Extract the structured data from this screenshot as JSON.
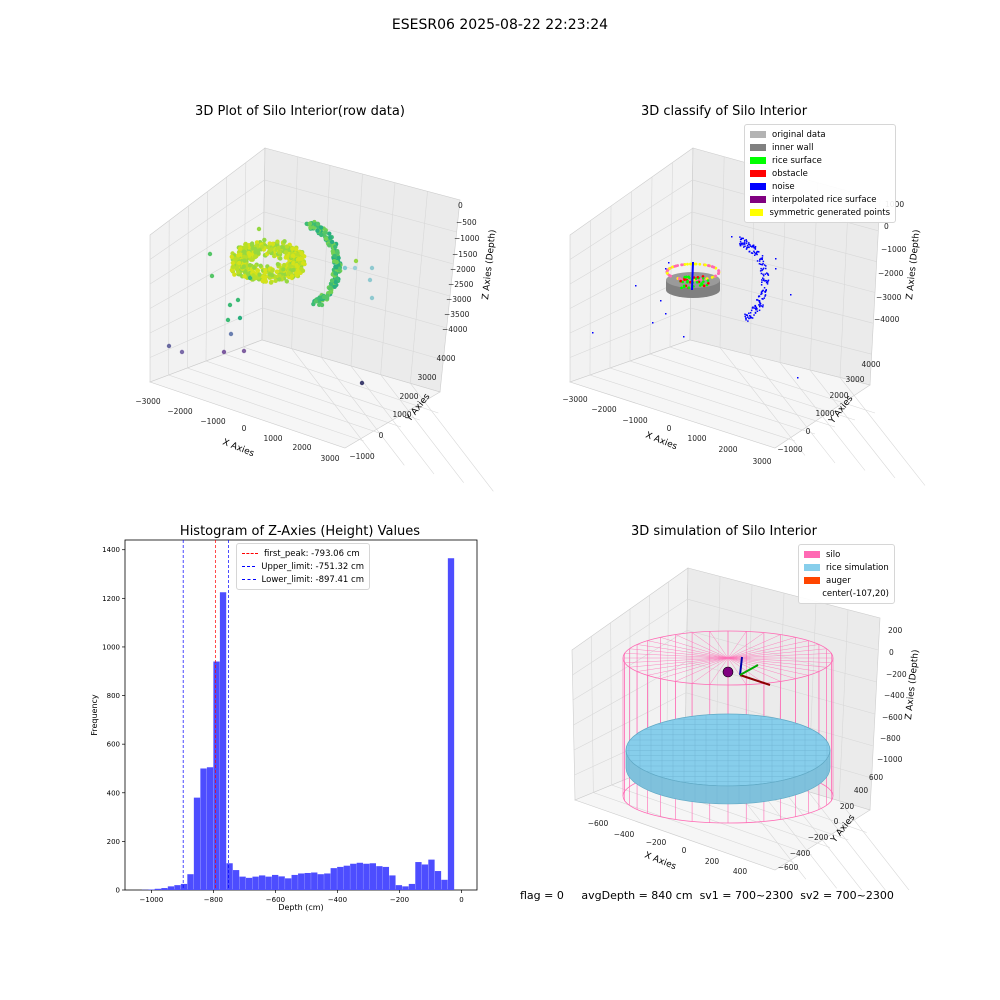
{
  "suptitle": "ESESR06 2025-08-22 22:23:24",
  "footer": {
    "flag": "flag = 0",
    "avg": "avgDepth = 840 cm",
    "sv1": "sv1 = 700~2300",
    "sv2": "sv2 = 700~2300"
  },
  "chart_data": [
    {
      "type": "scatter",
      "subtype": "3d",
      "title": "3D Plot of Silo Interior(row data)",
      "xlabel": "X Axies",
      "ylabel": "Y Axies",
      "zlabel": "Z Axies (Depth)",
      "xticks": [
        "−3000",
        "−2000",
        "−1000",
        "0",
        "1000",
        "2000",
        "3000"
      ],
      "yticks": [
        "−1000",
        "0",
        "1000",
        "2000",
        "3000",
        "4000"
      ],
      "zticks": [
        "0",
        "−500",
        "−1000",
        "−1500",
        "−2000",
        "−2500",
        "−3000",
        "−3500",
        "−4000"
      ],
      "colormap": "viridis"
    },
    {
      "type": "scatter",
      "subtype": "3d",
      "title": "3D classify of Silo Interior",
      "xlabel": "X Axies",
      "ylabel": "Y Axies",
      "zlabel": "Z Axies (Depth)",
      "xticks": [
        "−3000",
        "−2000",
        "−1000",
        "0",
        "1000",
        "2000",
        "3000"
      ],
      "yticks": [
        "−1000",
        "0",
        "1000",
        "2000",
        "3000",
        "4000"
      ],
      "zticks": [
        "1000",
        "0",
        "−1000",
        "−2000",
        "−3000",
        "−4000"
      ],
      "legend": [
        {
          "label": "original data",
          "color": "#b3b3b3"
        },
        {
          "label": "inner wall",
          "color": "#808080"
        },
        {
          "label": "rice surface",
          "color": "#00ff00"
        },
        {
          "label": "obstacle",
          "color": "#ff0000"
        },
        {
          "label": "noise",
          "color": "#0000ff"
        },
        {
          "label": "interpolated rice surface",
          "color": "#800080"
        },
        {
          "label": "symmetric generated points",
          "color": "#ffff00"
        }
      ]
    },
    {
      "type": "bar",
      "subtype": "histogram",
      "title": "Histogram of Z-Axies (Height) Values",
      "xlabel": "Depth (cm)",
      "ylabel": "Frequency",
      "xlim": [
        -1085,
        50
      ],
      "ylim": [
        0,
        1440
      ],
      "xticks": [
        -1000,
        -800,
        -600,
        -400,
        -200,
        0
      ],
      "xtick_labels": [
        "−1000",
        "−800",
        "−600",
        "−400",
        "−200",
        "0"
      ],
      "yticks": [
        0,
        200,
        400,
        600,
        800,
        1000,
        1200,
        1400
      ],
      "bar_color": "#4d4dff",
      "bin_width": 21,
      "bin_lefts": [
        -1031,
        -1010,
        -989,
        -968,
        -947,
        -926,
        -905,
        -884,
        -863,
        -842,
        -821,
        -800,
        -779,
        -758,
        -737,
        -716,
        -695,
        -674,
        -653,
        -632,
        -611,
        -590,
        -569,
        -548,
        -527,
        -506,
        -485,
        -464,
        -443,
        -422,
        -401,
        -380,
        -359,
        -338,
        -317,
        -296,
        -275,
        -254,
        -233,
        -212,
        -191,
        -170,
        -149,
        -128,
        -107,
        -86,
        -65,
        -44,
        -23,
        -2
      ],
      "counts": [
        1,
        2,
        5,
        8,
        15,
        20,
        25,
        65,
        380,
        500,
        505,
        940,
        1225,
        110,
        82,
        55,
        50,
        55,
        60,
        55,
        62,
        56,
        48,
        62,
        68,
        70,
        72,
        65,
        68,
        90,
        95,
        100,
        108,
        112,
        108,
        110,
        98,
        95,
        60,
        20,
        15,
        25,
        115,
        105,
        125,
        78,
        42,
        1365,
        0,
        0
      ],
      "vlines": [
        {
          "x": -793.06,
          "color": "#ff0000",
          "label": "first_peak: -793.06 cm"
        },
        {
          "x": -751.32,
          "color": "#0000ff",
          "label": "Upper_limit: -751.32 cm"
        },
        {
          "x": -897.41,
          "color": "#0000ff",
          "label": "Lower_limit: -897.41 cm"
        }
      ],
      "legend_position": "top-center"
    },
    {
      "type": "line",
      "subtype": "3d wireframe + surface",
      "title": "3D simulation of Silo Interior",
      "xlabel": "X Axies",
      "ylabel": "Y Axies",
      "zlabel": "Z Axies (Depth)",
      "xticks": [
        "−600",
        "−400",
        "−200",
        "0",
        "200",
        "400"
      ],
      "yticks": [
        "−600",
        "−400",
        "−200",
        "0",
        "200",
        "400",
        "600"
      ],
      "zticks": [
        "200",
        "0",
        "−200",
        "−400",
        "−600",
        "−800",
        "−1000"
      ],
      "legend": [
        {
          "label": "silo",
          "color": "#ff69b4"
        },
        {
          "label": "rice simulation",
          "color": "#87ceeb"
        },
        {
          "label": "auger",
          "color": "#ff4500"
        },
        {
          "label": "center(-107,20)",
          "color": ""
        }
      ]
    }
  ]
}
